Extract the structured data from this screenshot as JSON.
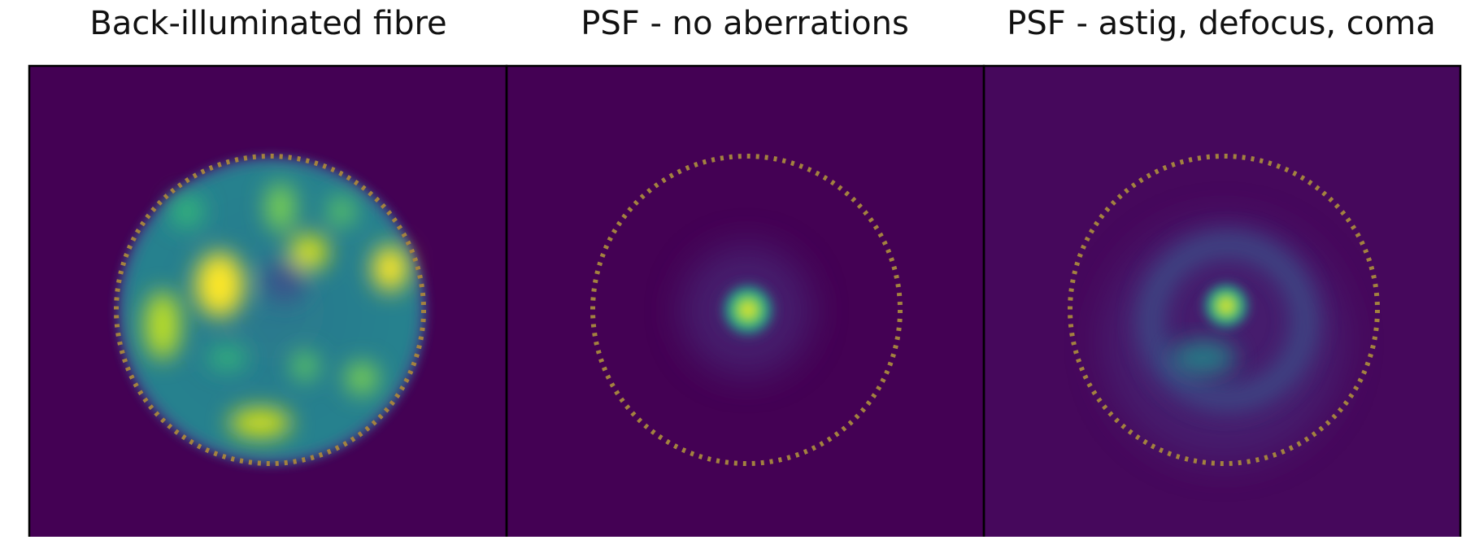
{
  "panels": [
    {
      "title": "Back-illuminated fibre"
    },
    {
      "title": "PSF - no aberrations"
    },
    {
      "title": "PSF - astig, defocus, coma"
    }
  ]
}
